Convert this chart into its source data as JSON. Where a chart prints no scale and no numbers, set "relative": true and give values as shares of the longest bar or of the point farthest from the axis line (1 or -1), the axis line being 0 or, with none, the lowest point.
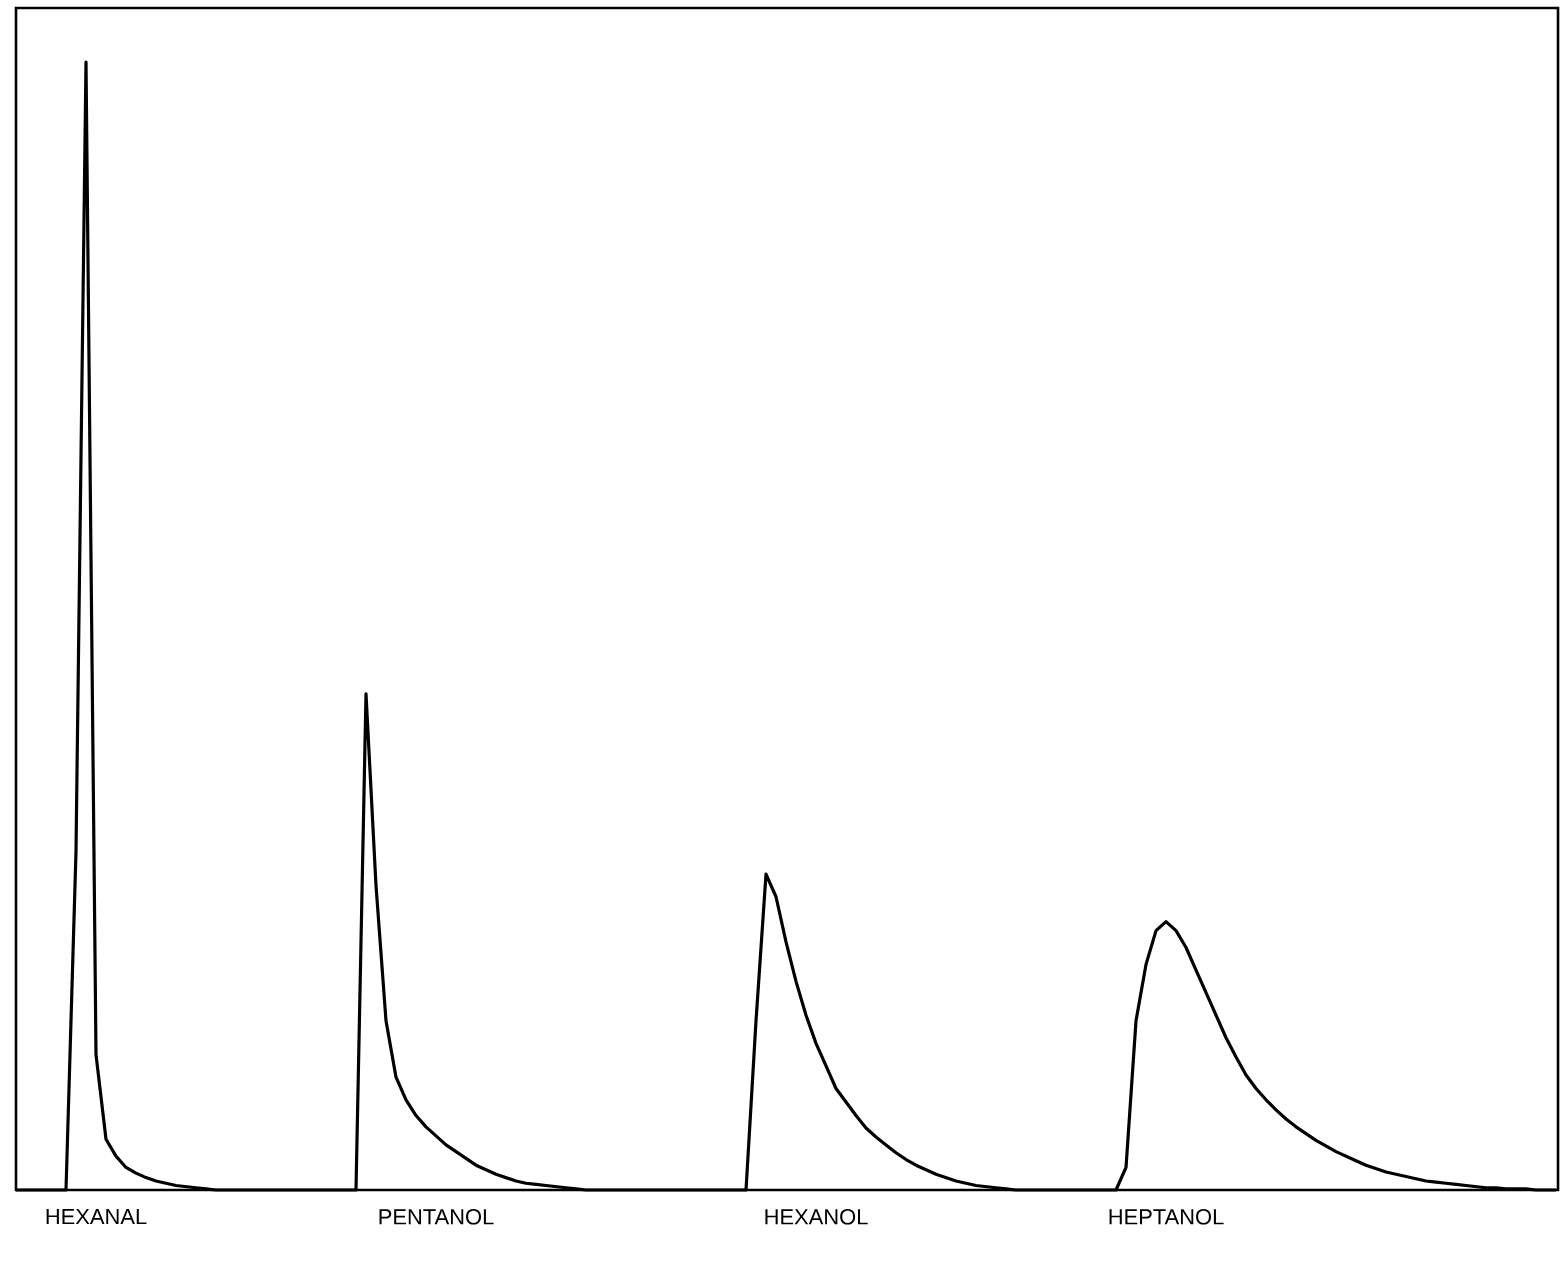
{
  "chart_data": {
    "type": "line",
    "relative": true,
    "marker": "none",
    "line_style": "solid",
    "categories": [
      null,
      null,
      null,
      null,
      null,
      null,
      null,
      null,
      "HEXANAL",
      null,
      null,
      null,
      null,
      null,
      null,
      null,
      null,
      null,
      null,
      null,
      null,
      null,
      null,
      null,
      null,
      null,
      null,
      null,
      null,
      null,
      null,
      null,
      null,
      null,
      null,
      null,
      null,
      null,
      null,
      null,
      null,
      null,
      "PENTANOL",
      null,
      null,
      null,
      null,
      null,
      null,
      null,
      null,
      null,
      null,
      null,
      null,
      null,
      null,
      null,
      null,
      null,
      null,
      null,
      null,
      null,
      null,
      null,
      null,
      null,
      null,
      null,
      null,
      null,
      null,
      null,
      null,
      null,
      null,
      null,
      null,
      null,
      "HEXANOL",
      null,
      null,
      null,
      null,
      null,
      null,
      null,
      null,
      null,
      null,
      null,
      null,
      null,
      null,
      null,
      null,
      null,
      null,
      null,
      null,
      null,
      null,
      null,
      null,
      null,
      null,
      null,
      null,
      null,
      null,
      null,
      null,
      null,
      null,
      "HEPTANOL",
      null,
      null,
      null,
      null,
      null,
      null,
      null,
      null,
      null,
      null,
      null,
      null,
      null,
      null,
      null,
      null,
      null,
      null,
      null,
      null,
      null,
      null,
      null,
      null,
      null,
      null,
      null,
      null,
      null,
      null,
      null,
      null,
      null,
      null,
      null,
      null,
      null,
      null,
      null
    ],
    "series": [
      {
        "color": "#000000",
        "values": [
          0,
          0,
          0,
          0,
          0,
          0,
          0.3,
          1,
          0.12,
          0.045,
          0.03,
          0.02,
          0.015,
          0.011,
          0.008,
          0.006,
          0.004,
          0.003,
          0.002,
          0.001,
          0,
          0,
          0,
          0,
          0,
          0,
          0,
          0,
          0,
          0,
          0,
          0,
          0,
          0,
          0,
          0.44,
          0.27,
          0.15,
          0.1,
          0.08,
          0.066,
          0.056,
          0.048,
          0.04,
          0.034,
          0.028,
          0.022,
          0.018,
          0.014,
          0.011,
          0.008,
          0.006,
          0.005,
          0.004,
          0.003,
          0.002,
          0.001,
          0,
          0,
          0,
          0,
          0,
          0,
          0,
          0,
          0,
          0,
          0,
          0,
          0,
          0,
          0,
          0,
          0,
          0.15,
          0.28,
          0.26,
          0.22,
          0.185,
          0.155,
          0.13,
          0.11,
          0.09,
          0.078,
          0.066,
          0.055,
          0.047,
          0.04,
          0.033,
          0.027,
          0.022,
          0.018,
          0.014,
          0.011,
          0.008,
          0.006,
          0.004,
          0.003,
          0.002,
          0.001,
          0,
          0,
          0,
          0,
          0,
          0,
          0,
          0,
          0,
          0,
          0,
          0.02,
          0.15,
          0.2,
          0.23,
          0.238,
          0.23,
          0.215,
          0.195,
          0.175,
          0.155,
          0.135,
          0.118,
          0.102,
          0.09,
          0.08,
          0.071,
          0.063,
          0.056,
          0.05,
          0.044,
          0.039,
          0.034,
          0.03,
          0.026,
          0.022,
          0.019,
          0.016,
          0.014,
          0.012,
          0.01,
          0.008,
          0.007,
          0.006,
          0.005,
          0.004,
          0.003,
          0.002,
          0.002,
          0.001,
          0.001,
          0.001,
          0,
          0,
          0
        ]
      }
    ]
  }
}
